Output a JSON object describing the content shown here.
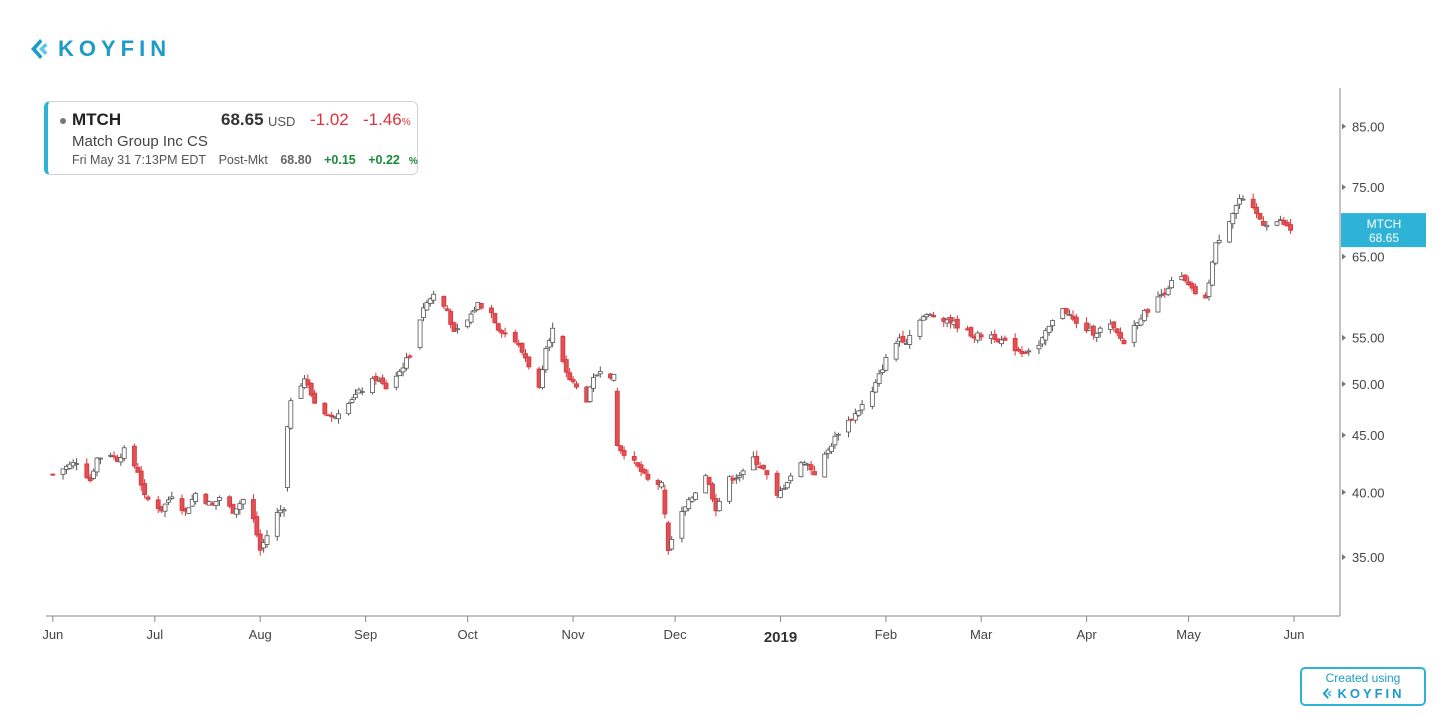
{
  "branding": {
    "logo_text": "KOYFIN",
    "credit_text": "Created using",
    "credit_brand": "KOYFIN"
  },
  "quote": {
    "ticker": "MTCH",
    "price": "68.65",
    "currency": "USD",
    "change": "-1.02",
    "change_pct": "-1.46",
    "pct_sign": "%",
    "name": "Match Group Inc CS",
    "timestamp": "Fri May 31 7:13PM EDT",
    "post_label": "Post-Mkt",
    "post_price": "68.80",
    "post_change": "+0.15",
    "post_change_pct": "+0.22"
  },
  "colors": {
    "up_fill": "#ffffff",
    "up_stroke": "#555555",
    "down_fill": "#e05054",
    "down_stroke": "#d8343a",
    "accent": "#2eb3d6",
    "brand": "#1e9bc7",
    "positive": "#1b8a3a",
    "negative": "#e0303a"
  },
  "chart_data": {
    "type": "candlestick",
    "y_scale": "log",
    "ylim": [
      31,
      92
    ],
    "y_ticks": [
      "35.00",
      "40.00",
      "45.00",
      "50.00",
      "55.00",
      "65.00",
      "75.00",
      "85.00"
    ],
    "x_ticks": [
      "Jun",
      "Jul",
      "Aug",
      "Sep",
      "Oct",
      "Nov",
      "Dec",
      "2019",
      "Feb",
      "Mar",
      "Apr",
      "May",
      "Jun"
    ],
    "year_label": "2019",
    "price_tag": {
      "ticker": "MTCH",
      "value": "68.65"
    },
    "date_range": [
      "2018-06-01",
      "2019-05-31"
    ],
    "anchors": [
      [
        "2018-06-01",
        41.5
      ],
      [
        "2018-06-04",
        42.0
      ],
      [
        "2018-06-08",
        42.6
      ],
      [
        "2018-06-12",
        41.0
      ],
      [
        "2018-06-14",
        42.9
      ],
      [
        "2018-06-18",
        43.3
      ],
      [
        "2018-06-20",
        42.8
      ],
      [
        "2018-06-22",
        43.6
      ],
      [
        "2018-06-26",
        41.8
      ],
      [
        "2018-06-28",
        39.6
      ],
      [
        "2018-07-03",
        38.6
      ],
      [
        "2018-07-06",
        39.8
      ],
      [
        "2018-07-10",
        38.4
      ],
      [
        "2018-07-13",
        39.9
      ],
      [
        "2018-07-18",
        38.9
      ],
      [
        "2018-07-20",
        39.6
      ],
      [
        "2018-07-24",
        38.5
      ],
      [
        "2018-07-27",
        39.4
      ],
      [
        "2018-07-30",
        37.8
      ],
      [
        "2018-08-01",
        35.5
      ],
      [
        "2018-08-03",
        36.6
      ],
      [
        "2018-08-06",
        38.3
      ],
      [
        "2018-08-08",
        38.8
      ],
      [
        "2018-08-09",
        45.7
      ],
      [
        "2018-08-10",
        48.5
      ],
      [
        "2018-08-14",
        50.6
      ],
      [
        "2018-08-17",
        48.1
      ],
      [
        "2018-08-22",
        46.6
      ],
      [
        "2018-08-27",
        48.3
      ],
      [
        "2018-08-31",
        49.4
      ],
      [
        "2018-09-04",
        50.6
      ],
      [
        "2018-09-07",
        49.6
      ],
      [
        "2018-09-11",
        51.3
      ],
      [
        "2018-09-14",
        53.1
      ],
      [
        "2018-09-18",
        58.6
      ],
      [
        "2018-09-21",
        60.1
      ],
      [
        "2018-09-25",
        58.2
      ],
      [
        "2018-09-27",
        55.4
      ],
      [
        "2018-10-01",
        57.0
      ],
      [
        "2018-10-04",
        59.0
      ],
      [
        "2018-10-08",
        57.9
      ],
      [
        "2018-10-10",
        56.1
      ],
      [
        "2018-10-15",
        54.6
      ],
      [
        "2018-10-18",
        52.8
      ],
      [
        "2018-10-22",
        49.5
      ],
      [
        "2018-10-24",
        54.1
      ],
      [
        "2018-10-26",
        55.9
      ],
      [
        "2018-10-29",
        52.1
      ],
      [
        "2018-10-31",
        50.5
      ],
      [
        "2018-11-02",
        49.6
      ],
      [
        "2018-11-05",
        48.4
      ],
      [
        "2018-11-07",
        50.4
      ],
      [
        "2018-11-09",
        51.6
      ],
      [
        "2018-11-13",
        50.7
      ],
      [
        "2018-11-14",
        44.0
      ],
      [
        "2018-11-19",
        42.5
      ],
      [
        "2018-11-23",
        41.0
      ],
      [
        "2018-11-27",
        40.6
      ],
      [
        "2018-11-29",
        35.6
      ],
      [
        "2018-12-03",
        38.3
      ],
      [
        "2018-12-06",
        39.6
      ],
      [
        "2018-12-10",
        41.5
      ],
      [
        "2018-12-13",
        38.7
      ],
      [
        "2018-12-17",
        41.1
      ],
      [
        "2018-12-21",
        41.6
      ],
      [
        "2018-12-24",
        42.9
      ],
      [
        "2018-12-27",
        41.9
      ],
      [
        "2018-12-31",
        39.6
      ],
      [
        "2019-01-04",
        41.4
      ],
      [
        "2019-01-08",
        42.7
      ],
      [
        "2019-01-11",
        41.6
      ],
      [
        "2019-01-15",
        43.6
      ],
      [
        "2019-01-18",
        45.3
      ],
      [
        "2019-01-23",
        47.0
      ],
      [
        "2019-01-28",
        49.1
      ],
      [
        "2019-02-01",
        52.6
      ],
      [
        "2019-02-05",
        55.0
      ],
      [
        "2019-02-07",
        54.6
      ],
      [
        "2019-02-11",
        57.3
      ],
      [
        "2019-02-14",
        57.6
      ],
      [
        "2019-02-19",
        57.1
      ],
      [
        "2019-02-22",
        56.4
      ],
      [
        "2019-02-27",
        55.2
      ],
      [
        "2019-03-04",
        55.3
      ],
      [
        "2019-03-08",
        54.4
      ],
      [
        "2019-03-13",
        53.4
      ],
      [
        "2019-03-18",
        54.1
      ],
      [
        "2019-03-21",
        56.2
      ],
      [
        "2019-03-25",
        58.6
      ],
      [
        "2019-03-29",
        56.5
      ],
      [
        "2019-04-03",
        55.6
      ],
      [
        "2019-04-08",
        56.4
      ],
      [
        "2019-04-12",
        54.4
      ],
      [
        "2019-04-16",
        57.0
      ],
      [
        "2019-04-22",
        59.6
      ],
      [
        "2019-04-26",
        61.6
      ],
      [
        "2019-04-29",
        62.2
      ],
      [
        "2019-05-02",
        60.6
      ],
      [
        "2019-05-06",
        59.4
      ],
      [
        "2019-05-09",
        66.6
      ],
      [
        "2019-05-13",
        70.2
      ],
      [
        "2019-05-16",
        73.2
      ],
      [
        "2019-05-20",
        71.5
      ],
      [
        "2019-05-23",
        69.6
      ],
      [
        "2019-05-28",
        69.9
      ],
      [
        "2019-05-31",
        68.65
      ]
    ]
  }
}
